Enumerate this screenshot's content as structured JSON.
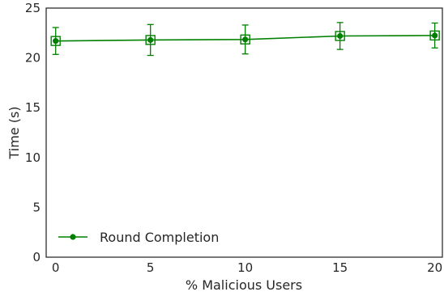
{
  "chart_data": {
    "type": "line",
    "xlabel": "% Malicious Users",
    "ylabel": "Time (s)",
    "xlim": [
      -0.5,
      20.4
    ],
    "ylim": [
      0,
      25
    ],
    "x_ticks": [
      0,
      5,
      10,
      15,
      20
    ],
    "y_ticks": [
      0,
      5,
      10,
      15,
      20,
      25
    ],
    "grid": false,
    "legend_position": "bottom-left",
    "series": [
      {
        "name": "Round Completion",
        "color": "#008000",
        "marker": "circle-with-square",
        "x": [
          0,
          5,
          10,
          15,
          20
        ],
        "y": [
          21.7,
          21.8,
          21.85,
          22.2,
          22.25
        ],
        "error": [
          1.35,
          1.55,
          1.45,
          1.35,
          1.25
        ]
      }
    ]
  }
}
